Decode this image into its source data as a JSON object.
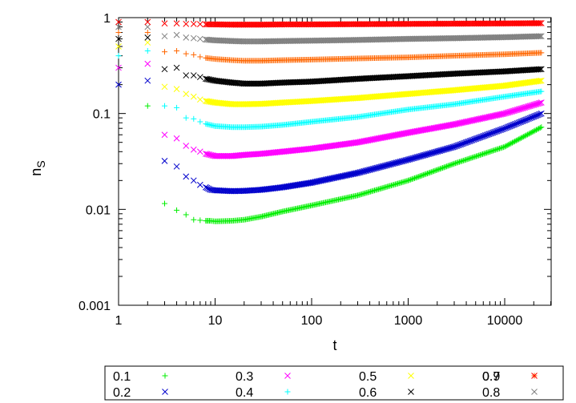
{
  "chart_data": {
    "type": "scatter",
    "title": "",
    "xlabel": "t",
    "ylabel": "n",
    "ylabel_subscript": "S",
    "x_scale": "log",
    "y_scale": "log",
    "xlim": [
      1,
      30000
    ],
    "ylim": [
      0.001,
      1
    ],
    "x_ticks": [
      {
        "value": 1,
        "label": "1"
      },
      {
        "value": 10,
        "label": "10"
      },
      {
        "value": 100,
        "label": "100"
      },
      {
        "value": 1000,
        "label": "1000"
      },
      {
        "value": 10000,
        "label": "10000"
      }
    ],
    "y_ticks": [
      {
        "value": 0.001,
        "label": "0.001"
      },
      {
        "value": 0.01,
        "label": "0.01"
      },
      {
        "value": 0.1,
        "label": "0.1"
      },
      {
        "value": 1,
        "label": "1"
      }
    ],
    "grid": false,
    "legend_position": "bottom",
    "series": [
      {
        "name": "0.1",
        "color": "#00ee00",
        "marker": "plus",
        "points": [
          [
            2,
            0.12
          ],
          [
            3,
            0.0115
          ],
          [
            4,
            0.0098
          ],
          [
            5,
            0.0088
          ],
          [
            6,
            0.0078
          ],
          [
            7,
            0.0077
          ],
          [
            8,
            0.0076
          ],
          [
            9,
            0.0076
          ],
          [
            10,
            0.0075
          ],
          [
            15,
            0.0076
          ],
          [
            20,
            0.0078
          ],
          [
            30,
            0.0084
          ],
          [
            50,
            0.0095
          ],
          [
            100,
            0.011
          ],
          [
            300,
            0.014
          ],
          [
            1000,
            0.02
          ],
          [
            3000,
            0.03
          ],
          [
            10000,
            0.045
          ],
          [
            24000,
            0.072
          ]
        ]
      },
      {
        "name": "0.2",
        "color": "#0000cc",
        "marker": "cross",
        "points": [
          [
            1,
            0.2
          ],
          [
            2,
            0.22
          ],
          [
            3,
            0.032
          ],
          [
            4,
            0.028
          ],
          [
            5,
            0.022
          ],
          [
            6,
            0.02
          ],
          [
            7,
            0.018
          ],
          [
            8,
            0.017
          ],
          [
            9,
            0.016
          ],
          [
            10,
            0.0158
          ],
          [
            15,
            0.0155
          ],
          [
            20,
            0.0156
          ],
          [
            30,
            0.016
          ],
          [
            50,
            0.017
          ],
          [
            100,
            0.019
          ],
          [
            300,
            0.024
          ],
          [
            1000,
            0.033
          ],
          [
            3000,
            0.045
          ],
          [
            10000,
            0.07
          ],
          [
            24000,
            0.1
          ]
        ]
      },
      {
        "name": "0.3",
        "color": "#ff00ff",
        "marker": "cross",
        "points": [
          [
            1,
            0.3
          ],
          [
            2,
            0.33
          ],
          [
            3,
            0.06
          ],
          [
            4,
            0.055
          ],
          [
            5,
            0.046
          ],
          [
            6,
            0.042
          ],
          [
            7,
            0.04
          ],
          [
            8,
            0.038
          ],
          [
            10,
            0.036
          ],
          [
            15,
            0.036
          ],
          [
            20,
            0.037
          ],
          [
            30,
            0.038
          ],
          [
            50,
            0.04
          ],
          [
            100,
            0.043
          ],
          [
            300,
            0.05
          ],
          [
            1000,
            0.063
          ],
          [
            3000,
            0.077
          ],
          [
            10000,
            0.1
          ],
          [
            24000,
            0.13
          ]
        ]
      },
      {
        "name": "0.4",
        "color": "#00ffff",
        "marker": "plus",
        "points": [
          [
            1,
            0.4
          ],
          [
            2,
            0.45
          ],
          [
            3,
            0.12
          ],
          [
            4,
            0.115
          ],
          [
            5,
            0.09
          ],
          [
            6,
            0.088
          ],
          [
            7,
            0.082
          ],
          [
            8,
            0.078
          ],
          [
            10,
            0.074
          ],
          [
            15,
            0.072
          ],
          [
            20,
            0.072
          ],
          [
            30,
            0.073
          ],
          [
            50,
            0.076
          ],
          [
            100,
            0.082
          ],
          [
            300,
            0.092
          ],
          [
            1000,
            0.11
          ],
          [
            3000,
            0.125
          ],
          [
            10000,
            0.15
          ],
          [
            24000,
            0.17
          ]
        ]
      },
      {
        "name": "0.5",
        "color": "#ffff00",
        "marker": "cross",
        "points": [
          [
            1,
            0.5
          ],
          [
            2,
            0.55
          ],
          [
            3,
            0.19
          ],
          [
            4,
            0.18
          ],
          [
            5,
            0.16
          ],
          [
            6,
            0.15
          ],
          [
            7,
            0.14
          ],
          [
            8,
            0.135
          ],
          [
            10,
            0.13
          ],
          [
            15,
            0.125
          ],
          [
            20,
            0.125
          ],
          [
            30,
            0.126
          ],
          [
            50,
            0.13
          ],
          [
            100,
            0.135
          ],
          [
            300,
            0.145
          ],
          [
            1000,
            0.16
          ],
          [
            3000,
            0.175
          ],
          [
            10000,
            0.195
          ],
          [
            24000,
            0.22
          ]
        ]
      },
      {
        "name": "0.6",
        "color": "#000000",
        "marker": "cross",
        "points": [
          [
            1,
            0.6
          ],
          [
            2,
            0.62
          ],
          [
            3,
            0.29
          ],
          [
            4,
            0.3
          ],
          [
            5,
            0.25
          ],
          [
            6,
            0.25
          ],
          [
            7,
            0.24
          ],
          [
            8,
            0.23
          ],
          [
            10,
            0.22
          ],
          [
            15,
            0.21
          ],
          [
            20,
            0.205
          ],
          [
            30,
            0.205
          ],
          [
            50,
            0.21
          ],
          [
            100,
            0.215
          ],
          [
            300,
            0.23
          ],
          [
            1000,
            0.245
          ],
          [
            3000,
            0.26
          ],
          [
            10000,
            0.275
          ],
          [
            24000,
            0.29
          ]
        ]
      },
      {
        "name": "0.7",
        "color": "#ff6600",
        "marker": "plus",
        "points": [
          [
            1,
            0.7
          ],
          [
            2,
            0.7
          ],
          [
            3,
            0.44
          ],
          [
            4,
            0.45
          ],
          [
            5,
            0.42
          ],
          [
            6,
            0.41
          ],
          [
            7,
            0.39
          ],
          [
            8,
            0.38
          ],
          [
            10,
            0.37
          ],
          [
            15,
            0.36
          ],
          [
            20,
            0.355
          ],
          [
            30,
            0.355
          ],
          [
            50,
            0.36
          ],
          [
            100,
            0.365
          ],
          [
            300,
            0.375
          ],
          [
            1000,
            0.385
          ],
          [
            3000,
            0.4
          ],
          [
            10000,
            0.415
          ],
          [
            24000,
            0.43
          ]
        ]
      },
      {
        "name": "0.8",
        "color": "#808080",
        "marker": "cross",
        "points": [
          [
            1,
            0.8
          ],
          [
            2,
            0.8
          ],
          [
            3,
            0.64
          ],
          [
            4,
            0.66
          ],
          [
            5,
            0.62
          ],
          [
            6,
            0.61
          ],
          [
            7,
            0.6
          ],
          [
            8,
            0.59
          ],
          [
            10,
            0.58
          ],
          [
            15,
            0.57
          ],
          [
            20,
            0.565
          ],
          [
            30,
            0.565
          ],
          [
            50,
            0.57
          ],
          [
            100,
            0.575
          ],
          [
            300,
            0.585
          ],
          [
            1000,
            0.6
          ],
          [
            3000,
            0.61
          ],
          [
            10000,
            0.625
          ],
          [
            24000,
            0.64
          ]
        ]
      },
      {
        "name": "0.9",
        "color": "#ff0000",
        "marker": "cross",
        "points": [
          [
            1,
            0.9
          ],
          [
            2,
            0.9
          ],
          [
            3,
            0.87
          ],
          [
            4,
            0.87
          ],
          [
            5,
            0.86
          ],
          [
            6,
            0.86
          ],
          [
            7,
            0.855
          ],
          [
            8,
            0.85
          ],
          [
            10,
            0.85
          ],
          [
            15,
            0.845
          ],
          [
            20,
            0.845
          ],
          [
            30,
            0.845
          ],
          [
            50,
            0.85
          ],
          [
            100,
            0.85
          ],
          [
            300,
            0.855
          ],
          [
            1000,
            0.86
          ],
          [
            3000,
            0.865
          ],
          [
            10000,
            0.87
          ],
          [
            24000,
            0.875
          ]
        ]
      }
    ]
  }
}
